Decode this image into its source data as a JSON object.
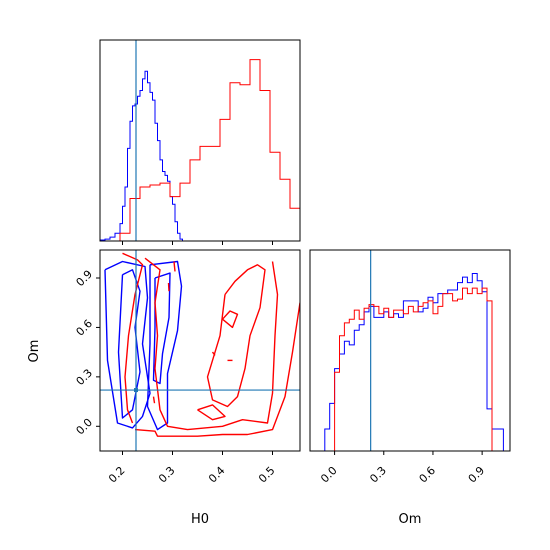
{
  "chart_data": {
    "type": "corner",
    "colors": {
      "a": "#0000ff",
      "b": "#ff0000",
      "truth": "#1f77b4"
    },
    "truth": {
      "H0": 0.227,
      "Om": 0.22
    },
    "labels": {
      "x1": "H0",
      "x2": "Om",
      "y1": "Om"
    },
    "h0_axis": {
      "range": [
        0.155,
        0.555
      ],
      "ticks": [
        "0.2",
        "0.3",
        "0.4",
        "0.5"
      ],
      "tick_values": [
        0.2,
        0.3,
        0.4,
        0.5
      ]
    },
    "om_axis": {
      "range": [
        -0.15,
        1.07
      ],
      "ticks": [
        "0.0",
        "0.3",
        "0.6",
        "0.9"
      ],
      "tick_values": [
        0.0,
        0.3,
        0.6,
        0.9
      ]
    },
    "hist_h0": {
      "edges": [
        0.155,
        0.175,
        0.195,
        0.215,
        0.235,
        0.255,
        0.275,
        0.295,
        0.315,
        0.335,
        0.355,
        0.375,
        0.395,
        0.415,
        0.435,
        0.455,
        0.475,
        0.495,
        0.515,
        0.535,
        0.555
      ],
      "series": [
        {
          "color": "blue",
          "edges": [
            0.155,
            0.165,
            0.175,
            0.185,
            0.195,
            0.2,
            0.205,
            0.21,
            0.215,
            0.22,
            0.225,
            0.23,
            0.235,
            0.24,
            0.245,
            0.25,
            0.255,
            0.26,
            0.265,
            0.27,
            0.275,
            0.28,
            0.285,
            0.29,
            0.295,
            0.3,
            0.305,
            0.31,
            0.315,
            0.32,
            0.33
          ],
          "values": [
            0.005,
            0.01,
            0.02,
            0.04,
            0.09,
            0.18,
            0.28,
            0.48,
            0.62,
            0.7,
            0.71,
            0.75,
            0.78,
            0.84,
            0.88,
            0.82,
            0.77,
            0.73,
            0.61,
            0.52,
            0.42,
            0.36,
            0.34,
            0.31,
            0.23,
            0.19,
            0.1,
            0.04,
            0.01,
            0.0
          ]
        },
        {
          "color": "red",
          "edges": [
            0.155,
            0.175,
            0.195,
            0.215,
            0.235,
            0.255,
            0.275,
            0.295,
            0.315,
            0.335,
            0.355,
            0.375,
            0.395,
            0.415,
            0.435,
            0.455,
            0.475,
            0.495,
            0.515,
            0.535,
            0.555
          ],
          "values": [
            0.0,
            0.0,
            0.04,
            0.22,
            0.28,
            0.29,
            0.3,
            0.23,
            0.3,
            0.42,
            0.49,
            0.49,
            0.63,
            0.82,
            0.81,
            0.94,
            0.78,
            0.46,
            0.32,
            0.17
          ]
        }
      ]
    },
    "hist_om": {
      "series": [
        {
          "color": "blue",
          "edges": [
            -0.15,
            -0.06,
            -0.03,
            0.0,
            0.03,
            0.06,
            0.09,
            0.12,
            0.15,
            0.18,
            0.21,
            0.24,
            0.27,
            0.3,
            0.33,
            0.36,
            0.39,
            0.42,
            0.45,
            0.48,
            0.51,
            0.54,
            0.57,
            0.6,
            0.63,
            0.66,
            0.69,
            0.72,
            0.75,
            0.78,
            0.81,
            0.84,
            0.87,
            0.9,
            0.93,
            0.96,
            1.0,
            1.03,
            1.07
          ],
          "values": [
            0.0,
            0.12,
            0.26,
            0.45,
            0.53,
            0.6,
            0.58,
            0.66,
            0.69,
            0.76,
            0.79,
            0.73,
            0.73,
            0.76,
            0.73,
            0.75,
            0.73,
            0.82,
            0.82,
            0.82,
            0.76,
            0.78,
            0.84,
            0.81,
            0.86,
            0.86,
            0.88,
            0.88,
            0.92,
            0.95,
            0.92,
            0.97,
            0.93,
            0.87,
            0.23,
            0.12,
            0.12,
            0.0
          ]
        },
        {
          "color": "red",
          "edges": [
            -0.15,
            0.0,
            0.03,
            0.06,
            0.09,
            0.12,
            0.15,
            0.18,
            0.21,
            0.24,
            0.27,
            0.3,
            0.33,
            0.36,
            0.39,
            0.42,
            0.45,
            0.48,
            0.51,
            0.54,
            0.57,
            0.6,
            0.63,
            0.66,
            0.69,
            0.72,
            0.75,
            0.78,
            0.81,
            0.84,
            0.87,
            0.9,
            0.93,
            0.96,
            1.0
          ],
          "values": [
            0.0,
            0.43,
            0.63,
            0.7,
            0.72,
            0.77,
            0.72,
            0.78,
            0.8,
            0.79,
            0.75,
            0.78,
            0.73,
            0.77,
            0.77,
            0.75,
            0.79,
            0.76,
            0.79,
            0.81,
            0.82,
            0.75,
            0.79,
            0.86,
            0.86,
            0.82,
            0.83,
            0.89,
            0.86,
            0.89,
            0.86,
            0.89,
            0.82,
            0.0
          ]
        }
      ]
    },
    "contours": {
      "blue": [
        [
          [
            0.165,
            0.95
          ],
          [
            0.2,
            1.0
          ],
          [
            0.245,
            0.97
          ],
          [
            0.25,
            0.78
          ],
          [
            0.24,
            0.5
          ],
          [
            0.255,
            0.2
          ],
          [
            0.24,
            0.06
          ],
          [
            0.22,
            -0.01
          ],
          [
            0.19,
            0.02
          ],
          [
            0.17,
            0.4
          ],
          [
            0.165,
            0.95
          ]
        ],
        [
          [
            0.2,
            0.92
          ],
          [
            0.22,
            0.95
          ],
          [
            0.235,
            0.82
          ],
          [
            0.225,
            0.6
          ],
          [
            0.235,
            0.33
          ],
          [
            0.22,
            0.1
          ],
          [
            0.2,
            0.05
          ],
          [
            0.192,
            0.45
          ],
          [
            0.2,
            0.92
          ]
        ],
        [
          [
            0.255,
            0.98
          ],
          [
            0.31,
            1.0
          ],
          [
            0.318,
            0.85
          ],
          [
            0.31,
            0.58
          ],
          [
            0.29,
            0.32
          ],
          [
            0.29,
            0.02
          ],
          [
            0.27,
            -0.02
          ],
          [
            0.25,
            0.12
          ],
          [
            0.255,
            0.5
          ],
          [
            0.255,
            0.98
          ]
        ],
        [
          [
            0.265,
            0.9
          ],
          [
            0.295,
            0.93
          ],
          [
            0.293,
            0.66
          ],
          [
            0.28,
            0.44
          ],
          [
            0.275,
            0.26
          ],
          [
            0.262,
            0.28
          ],
          [
            0.265,
            0.6
          ],
          [
            0.265,
            0.9
          ]
        ]
      ],
      "red": [
        [
          [
            0.2,
            1.05
          ],
          [
            0.23,
            1.01
          ],
          [
            0.24,
            0.98
          ],
          [
            0.225,
            0.8
          ],
          [
            0.212,
            0.55
          ],
          [
            0.205,
            0.3
          ],
          [
            0.21,
            0.1
          ],
          [
            0.22,
            0.02
          ]
        ],
        [
          [
            0.225,
            -0.02
          ],
          [
            0.265,
            -0.03
          ],
          [
            0.27,
            -0.06
          ],
          [
            0.35,
            -0.06
          ],
          [
            0.4,
            -0.05
          ],
          [
            0.45,
            -0.05
          ],
          [
            0.5,
            -0.02
          ],
          [
            0.525,
            0.18
          ],
          [
            0.54,
            0.45
          ],
          [
            0.555,
            0.75
          ]
        ],
        [
          [
            0.245,
            1.02
          ],
          [
            0.275,
            0.95
          ],
          [
            0.265,
            0.75
          ],
          [
            0.27,
            0.55
          ],
          [
            0.265,
            0.35
          ],
          [
            0.275,
            0.1
          ],
          [
            0.29,
            0.0
          ],
          [
            0.33,
            -0.02
          ],
          [
            0.4,
            0.0
          ],
          [
            0.44,
            0.04
          ],
          [
            0.49,
            0.02
          ],
          [
            0.5,
            0.2
          ],
          [
            0.505,
            0.55
          ],
          [
            0.51,
            0.8
          ],
          [
            0.5,
            1.0
          ]
        ],
        [
          [
            0.405,
            0.8
          ],
          [
            0.425,
            0.88
          ],
          [
            0.45,
            0.95
          ],
          [
            0.47,
            0.98
          ],
          [
            0.485,
            0.95
          ],
          [
            0.475,
            0.72
          ],
          [
            0.455,
            0.55
          ],
          [
            0.445,
            0.35
          ],
          [
            0.43,
            0.18
          ],
          [
            0.41,
            0.12
          ],
          [
            0.38,
            0.16
          ],
          [
            0.37,
            0.3
          ],
          [
            0.395,
            0.55
          ],
          [
            0.405,
            0.8
          ]
        ],
        [
          [
            0.35,
            0.1
          ],
          [
            0.38,
            0.13
          ],
          [
            0.405,
            0.06
          ],
          [
            0.38,
            0.04
          ],
          [
            0.35,
            0.1
          ]
        ],
        [
          [
            0.4,
            0.65
          ],
          [
            0.415,
            0.7
          ],
          [
            0.43,
            0.68
          ],
          [
            0.42,
            0.6
          ],
          [
            0.4,
            0.65
          ]
        ],
        [
          [
            0.303,
            1.0
          ],
          [
            0.305,
            0.94
          ]
        ],
        [
          [
            0.292,
            0.87
          ],
          [
            0.293,
            0.82
          ]
        ],
        [
          [
            0.262,
            0.18
          ],
          [
            0.264,
            0.14
          ]
        ],
        [
          [
            0.41,
            0.4
          ],
          [
            0.42,
            0.4
          ]
        ],
        [
          [
            0.38,
            0.45
          ],
          [
            0.385,
            0.43
          ]
        ]
      ]
    }
  }
}
